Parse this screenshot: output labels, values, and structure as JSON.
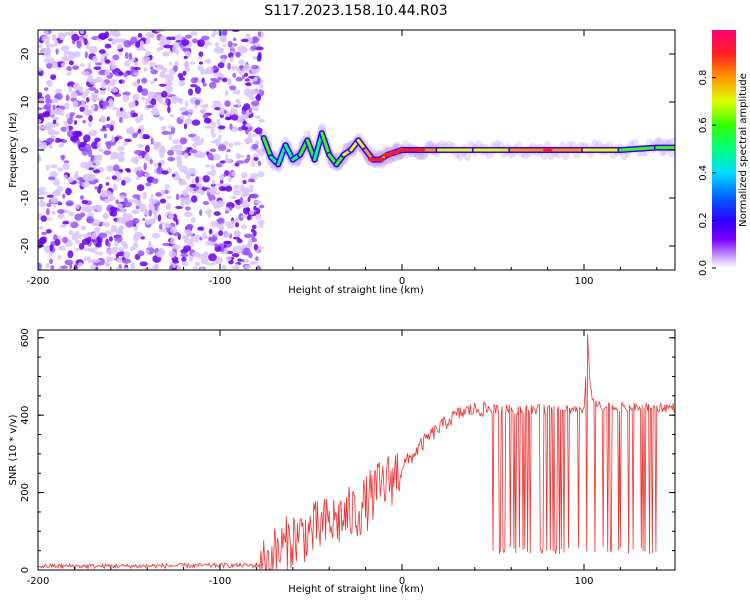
{
  "title": "S117.2023.158.10.44.R03",
  "colors": {
    "snr_line": "#ee3333",
    "axis": "#000000",
    "colormap": [
      "#ffffff",
      "#d8b8ff",
      "#8a2be2",
      "#4b00ff",
      "#0044ff",
      "#00c8ff",
      "#00ff66",
      "#ffff00",
      "#ff3030",
      "#ff00aa"
    ]
  },
  "chart_data": [
    {
      "type": "heatmap",
      "title": "S117.2023.158.10.44.R03",
      "xlabel": "Height of straight line (km)",
      "ylabel": "Frequency (Hz)",
      "xlim": [
        -200,
        150
      ],
      "ylim": [
        -25,
        25
      ],
      "x_ticks": [
        "-200",
        "-100",
        "0",
        "100"
      ],
      "y_ticks": [
        "-20",
        "-10",
        "0",
        "10",
        "20"
      ],
      "colorbar": {
        "label": "Normalized spectral amplitude",
        "range": [
          0.0,
          1.0
        ],
        "ticks": [
          "0.0",
          "0.2",
          "0.4",
          "0.6",
          "0.8"
        ]
      },
      "noise_region_x": [
        -200,
        -77
      ],
      "ridge": {
        "x": [
          -76,
          -72,
          -68,
          -64,
          -60,
          -56,
          -52,
          -48,
          -44,
          -40,
          -36,
          -32,
          -28,
          -24,
          -20,
          -16,
          -12,
          -8,
          -4,
          0,
          10,
          20,
          40,
          60,
          80,
          100,
          120,
          140,
          150
        ],
        "y": [
          2.5,
          -1.5,
          -3,
          1,
          -2,
          -1,
          2,
          -2,
          3.5,
          -1,
          -3,
          -1,
          0,
          2,
          0,
          -2,
          -2,
          -1,
          -0.5,
          0,
          0,
          0,
          0,
          0,
          0,
          0,
          0,
          0.5,
          0.5
        ],
        "amplitude": [
          0.55,
          0.5,
          0.45,
          0.5,
          0.45,
          0.55,
          0.6,
          0.5,
          0.5,
          0.6,
          0.55,
          0.6,
          0.65,
          0.7,
          0.7,
          0.85,
          0.8,
          0.8,
          0.85,
          0.8,
          0.85,
          0.7,
          0.65,
          0.7,
          0.85,
          0.7,
          0.6,
          0.55,
          0.55
        ]
      }
    },
    {
      "type": "line",
      "xlabel": "Height of straight line (km)",
      "ylabel": "SNR (10 * v/v)",
      "xlim": [
        -200,
        150
      ],
      "ylim": [
        0,
        620
      ],
      "x_ticks": [
        "-200",
        "-100",
        "0",
        "100"
      ],
      "y_ticks": [
        "0",
        "200",
        "400",
        "600"
      ],
      "series": [
        {
          "x": [
            -200,
            -150,
            -100,
            -80,
            -75,
            -70,
            -65,
            -60,
            -55,
            -50,
            -45,
            -40,
            -35,
            -30,
            -25,
            -20,
            -15,
            -10,
            -5,
            0,
            5,
            10,
            15,
            20,
            25,
            30,
            35,
            40,
            45,
            50,
            60,
            70,
            80,
            90,
            95,
            100,
            101,
            102,
            103,
            105,
            110,
            120,
            130,
            140,
            150
          ],
          "y": [
            10,
            10,
            12,
            12,
            15,
            40,
            60,
            80,
            90,
            100,
            110,
            120,
            130,
            140,
            150,
            170,
            200,
            220,
            240,
            270,
            290,
            320,
            345,
            365,
            385,
            400,
            410,
            415,
            415,
            415,
            415,
            415,
            415,
            415,
            415,
            415,
            500,
            620,
            500,
            430,
            420,
            420,
            420,
            420,
            420
          ]
        }
      ],
      "dropouts_x_range": [
        48,
        140
      ],
      "dropout_level": 40
    }
  ]
}
